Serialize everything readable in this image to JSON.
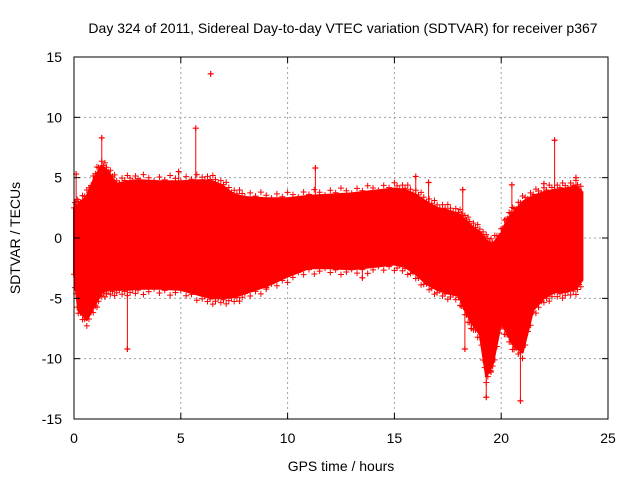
{
  "chart_data": {
    "type": "scatter",
    "title": "Day 324 of 2011, Sidereal Day-to-day VTEC variation (SDTVAR) for receiver p367",
    "xlabel": "GPS time / hours",
    "ylabel": "SDTVAR / TECUs",
    "xlim": [
      0,
      25
    ],
    "ylim": [
      -15,
      15
    ],
    "xticks": [
      0,
      5,
      10,
      15,
      20,
      25
    ],
    "yticks": [
      -15,
      -10,
      -5,
      0,
      5,
      10,
      15
    ],
    "grid": true,
    "marker": "+",
    "series_color": "#ff0000",
    "envelope": {
      "x": [
        0,
        0.2,
        0.6,
        1.0,
        1.3,
        1.6,
        2.0,
        2.5,
        3.0,
        4.0,
        5.0,
        6.0,
        6.5,
        7.0,
        7.5,
        8.0,
        9.0,
        10.0,
        11.0,
        12.0,
        13.0,
        14.0,
        15.0,
        15.5,
        16.0,
        16.5,
        17.0,
        17.5,
        18.0,
        18.3,
        18.6,
        19.0,
        19.3,
        19.6,
        20.0,
        20.3,
        20.6,
        21.0,
        21.5,
        22.0,
        22.5,
        23.0,
        23.5,
        23.8
      ],
      "upper": [
        2.5,
        2.8,
        3.5,
        5.2,
        6.0,
        5.5,
        4.5,
        4.7,
        4.8,
        4.7,
        4.7,
        4.8,
        4.7,
        4.3,
        3.6,
        3.4,
        3.3,
        3.3,
        3.5,
        3.6,
        3.7,
        3.9,
        4.1,
        4.0,
        3.6,
        3.0,
        2.5,
        2.3,
        2.0,
        1.5,
        1.0,
        0.5,
        -0.2,
        -0.5,
        0.4,
        1.6,
        2.2,
        3.0,
        3.5,
        3.8,
        4.0,
        4.1,
        4.3,
        3.8
      ],
      "lower": [
        -3.0,
        -6.0,
        -6.8,
        -5.5,
        -4.5,
        -4.3,
        -4.3,
        -4.3,
        -4.2,
        -4.2,
        -4.3,
        -4.8,
        -5.0,
        -5.0,
        -4.9,
        -4.6,
        -4.0,
        -3.2,
        -2.5,
        -2.5,
        -2.6,
        -2.4,
        -2.2,
        -2.4,
        -3.0,
        -3.8,
        -4.3,
        -4.6,
        -4.8,
        -6.0,
        -7.0,
        -8.0,
        -11.5,
        -10.5,
        -7.0,
        -8.0,
        -9.0,
        -9.5,
        -6.0,
        -5.0,
        -4.5,
        -4.5,
        -4.2,
        -3.5
      ]
    },
    "spikes": [
      {
        "x": 0.1,
        "y": 5.3
      },
      {
        "x": 1.3,
        "y": 8.3
      },
      {
        "x": 4.9,
        "y": 5.5
      },
      {
        "x": 5.7,
        "y": 9.1
      },
      {
        "x": 6.4,
        "y": 13.6
      },
      {
        "x": 11.3,
        "y": 5.8
      },
      {
        "x": 16.0,
        "y": 5.1
      },
      {
        "x": 16.6,
        "y": 4.6
      },
      {
        "x": 18.2,
        "y": 4.0
      },
      {
        "x": 20.5,
        "y": 4.4
      },
      {
        "x": 22.0,
        "y": 4.5
      },
      {
        "x": 22.5,
        "y": 8.1
      },
      {
        "x": 23.5,
        "y": 5.0
      },
      {
        "x": 2.5,
        "y": -9.2
      },
      {
        "x": 18.3,
        "y": -9.2
      },
      {
        "x": 19.3,
        "y": -13.2
      },
      {
        "x": 19.5,
        "y": -11.0
      },
      {
        "x": 20.7,
        "y": -8.5
      },
      {
        "x": 20.9,
        "y": -13.5
      },
      {
        "x": 9.0,
        "y": -4.1
      },
      {
        "x": 13.5,
        "y": -3.3
      },
      {
        "x": 18.6,
        "y": -7.5
      }
    ]
  }
}
